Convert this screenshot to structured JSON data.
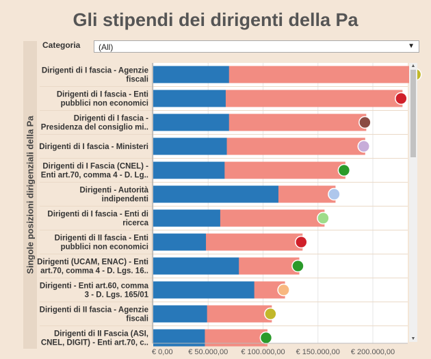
{
  "title": "Gli stipendi dei dirigenti della Pa",
  "filter": {
    "label": "Categoria",
    "value": "(All)"
  },
  "chart_data": {
    "type": "bar",
    "title": "Gli stipendi dei dirigenti della Pa",
    "ylabel": "Singole posizioni dirigenziali della Pa",
    "xlabel": "",
    "xlim": [
      0,
      240000
    ],
    "xticks": [
      "€ 0,00",
      "€ 50.000,00",
      "€ 100.000,00",
      "€ 150.000,00",
      "€ 200.000,00"
    ],
    "xtick_values": [
      0,
      50000,
      100000,
      150000,
      200000
    ],
    "categories": [
      [
        "Dirigenti di I fascia - Agenzie",
        "fiscali"
      ],
      [
        "Dirigenti di I fascia - Enti",
        "pubblici non economici"
      ],
      [
        "Dirigenti di I fascia -",
        "Presidenza del consiglio mi.."
      ],
      [
        "Dirigenti di I fascia - Ministeri"
      ],
      [
        "Dirigenti di I Fascia (CNEL) -",
        "Enti art.70, comma 4 - D. Lg.."
      ],
      [
        "Dirigenti - Autorità",
        "indipendenti"
      ],
      [
        "Dirigenti di I fascia - Enti di",
        "ricerca"
      ],
      [
        "Dirigenti di II fascia - Enti",
        "pubblici non economici"
      ],
      [
        "Dirigenti (UCAM, ENAC) - Enti",
        "art.70, comma 4 - D. Lgs. 16.."
      ],
      [
        "Dirigenti - Enti art.60, comma",
        "3 - D. Lgs. 165/01"
      ],
      [
        "Dirigenti di II fascia - Agenzie",
        "fiscali"
      ],
      [
        "Dirigenti di II Fascia (ASI,",
        "CNEL, DIGIT) - Enti art.70, c.."
      ]
    ],
    "series": [
      {
        "color": "#2878b9",
        "values": [
          69000,
          66000,
          69000,
          67000,
          65000,
          114000,
          61000,
          48000,
          78000,
          92000,
          49000,
          47000
        ]
      },
      {
        "color": "#f28c82",
        "values": [
          240000,
          227000,
          194000,
          193000,
          175000,
          166000,
          156000,
          136000,
          133000,
          120000,
          108000,
          104000
        ]
      }
    ],
    "marker_colors": [
      "#c2b82a",
      "#d0202a",
      "#8b4a42",
      "#c7acd9",
      "#2a9a2a",
      "#aec7ec",
      "#9edc8a",
      "#d0202a",
      "#2a9a2a",
      "#f8b880",
      "#c2b82a",
      "#2a9a2a"
    ],
    "grid": true,
    "legend": "none"
  }
}
